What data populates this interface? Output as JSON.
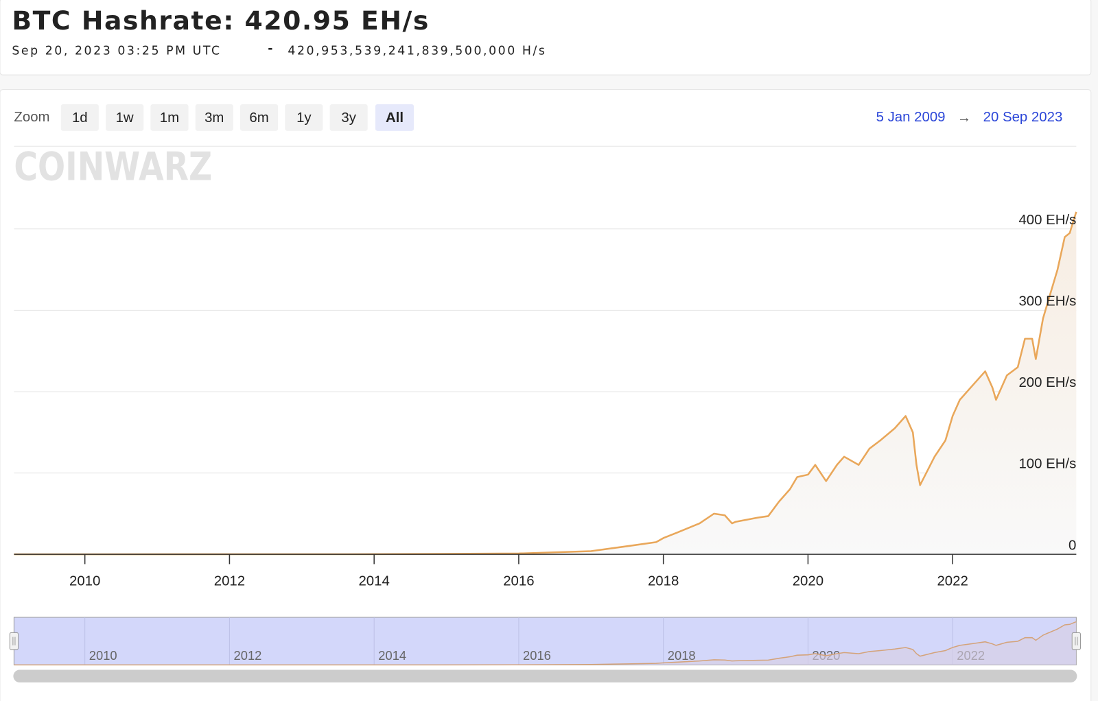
{
  "header": {
    "title": "BTC Hashrate: 420.95 EH/s",
    "date": "Sep 20, 2023 03:25 PM UTC",
    "separator": "-",
    "raw": "420,953,539,241,839,500,000 H/s"
  },
  "zoom": {
    "label": "Zoom",
    "buttons": [
      "1d",
      "1w",
      "1m",
      "3m",
      "6m",
      "1y",
      "3y",
      "All"
    ],
    "selected": 7
  },
  "range": {
    "from": "5 Jan 2009",
    "arrow": "→",
    "to": "20 Sep 2023"
  },
  "watermark": "COINWARZ",
  "chart_data": {
    "type": "area",
    "color": "#e9a75a",
    "grid": true,
    "x": [
      2009.02,
      2014,
      2016,
      2017,
      2017.5,
      2017.9,
      2018.0,
      2018.2,
      2018.5,
      2018.7,
      2018.85,
      2018.95,
      2019.0,
      2019.3,
      2019.45,
      2019.6,
      2019.75,
      2019.85,
      2020.0,
      2020.1,
      2020.25,
      2020.4,
      2020.5,
      2020.7,
      2020.85,
      2021.0,
      2021.2,
      2021.35,
      2021.45,
      2021.5,
      2021.55,
      2021.75,
      2021.9,
      2022.0,
      2022.1,
      2022.3,
      2022.45,
      2022.55,
      2022.6,
      2022.75,
      2022.9,
      2023.0,
      2023.1,
      2023.15,
      2023.25,
      2023.35,
      2023.45,
      2023.55,
      2023.62,
      2023.67,
      2023.71
    ],
    "values": [
      0,
      0.2,
      1,
      4,
      10,
      15,
      20,
      27,
      38,
      50,
      48,
      38,
      40,
      45,
      47,
      65,
      80,
      95,
      98,
      110,
      90,
      110,
      120,
      110,
      130,
      140,
      155,
      170,
      150,
      110,
      85,
      120,
      140,
      170,
      190,
      210,
      225,
      205,
      190,
      220,
      230,
      265,
      265,
      240,
      290,
      320,
      350,
      390,
      395,
      410,
      421
    ],
    "xlim": [
      2009.02,
      2023.71
    ],
    "xticks": [
      2010,
      2012,
      2014,
      2016,
      2018,
      2020,
      2022
    ],
    "ylim": [
      0,
      450
    ],
    "yticks": [
      0,
      {
        "value": 100,
        "label": "100 EH/s"
      },
      {
        "value": 200,
        "label": "200 EH/s"
      },
      {
        "value": 300,
        "label": "300 EH/s"
      },
      {
        "value": 400,
        "label": "400 EH/s"
      }
    ]
  }
}
